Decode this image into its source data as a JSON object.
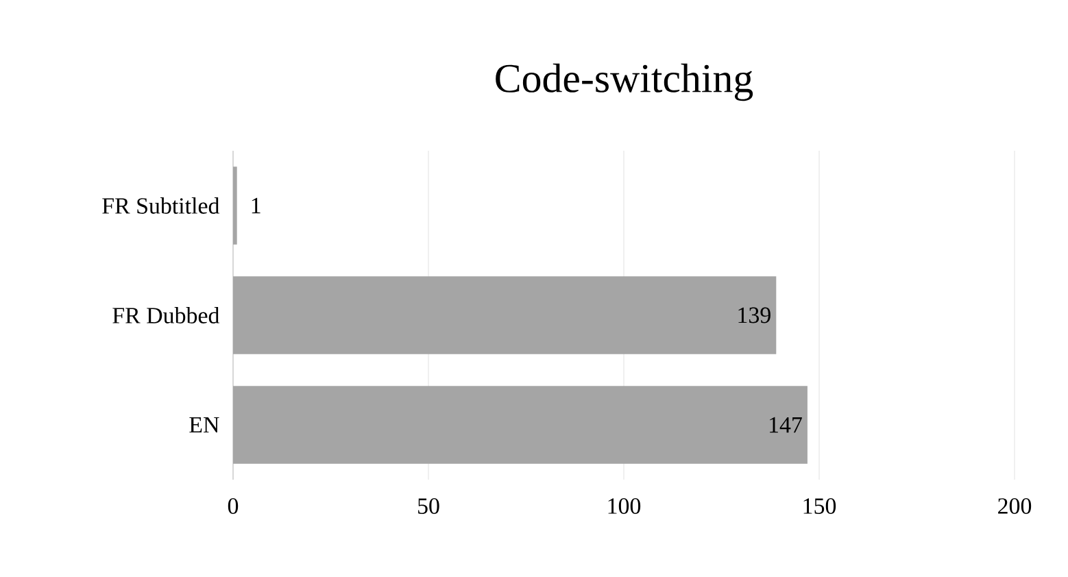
{
  "chart_data": {
    "type": "bar",
    "orientation": "horizontal",
    "title": "Code-switching",
    "categories": [
      "FR Subtitled",
      "FR Dubbed",
      "EN"
    ],
    "values": [
      1,
      139,
      147
    ],
    "color": "#a5a5a5",
    "xlim": [
      0,
      200
    ],
    "xticks": [
      0,
      50,
      100,
      150,
      200
    ],
    "grid": "x",
    "data_labels": true
  }
}
